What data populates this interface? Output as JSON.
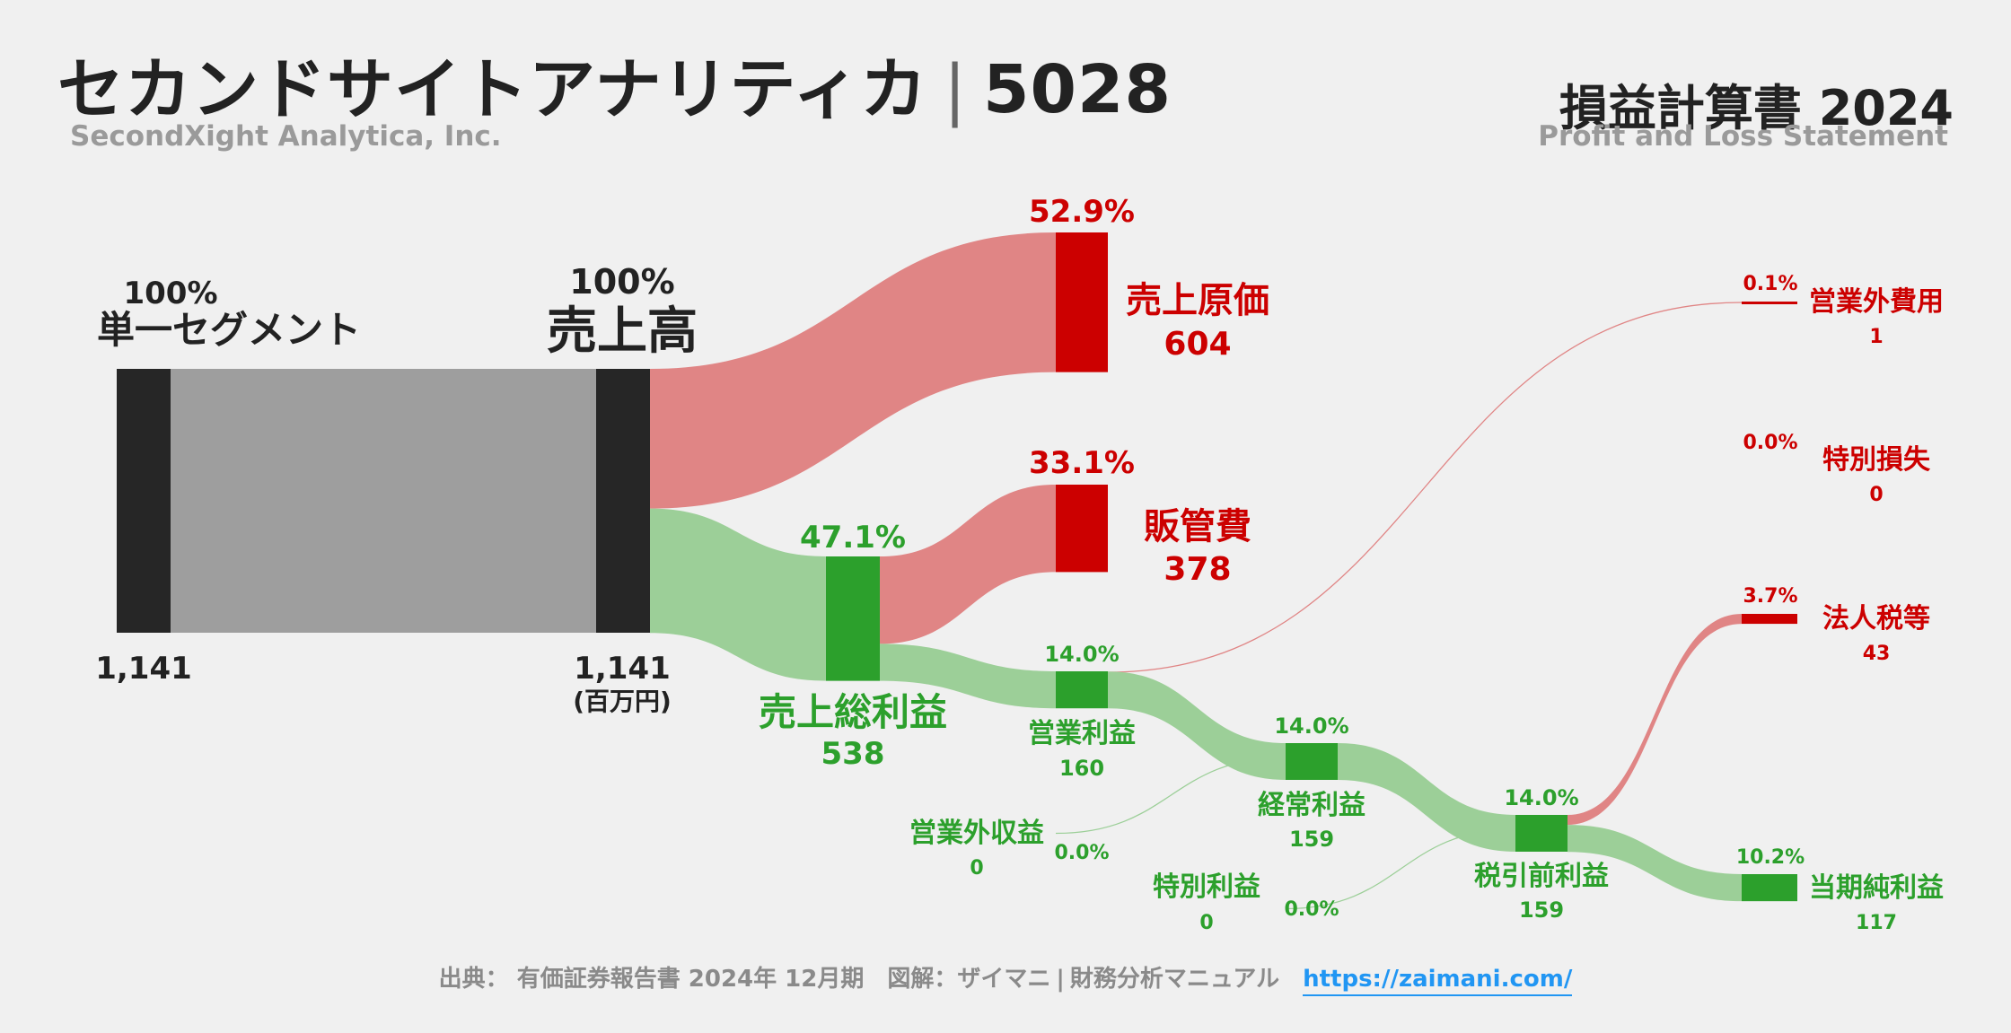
{
  "header": {
    "company_name": "セカンドサイトアナリティカ",
    "ticker": "5028",
    "company_name_en": "SecondXight Analytica, Inc.",
    "statement_title": "損益計算書 2024",
    "statement_title_en": "Profit and Loss Statement"
  },
  "footer": {
    "source": "出典： 有価証券報告書 2024年 12月期　図解：ザイマニ",
    "separator": "|",
    "publisher": "財務分析マニュアル",
    "url": "https://zaimani.com/"
  },
  "colors": {
    "revenue": "#262626",
    "segment_flow": "#9e9e9e",
    "cost": "#cc0000",
    "cost_flow": "#e08585",
    "profit": "#2ca02c",
    "profit_flow": "#9ccf98",
    "text_dark": "#222222"
  },
  "chart_data": {
    "type": "sankey",
    "unit": "(百万円)",
    "nodes": [
      {
        "id": "segment",
        "label": "単一セグメント",
        "value": 1141,
        "value_label": "1,141",
        "pct": "100%",
        "kind": "revenue"
      },
      {
        "id": "revenue",
        "label": "売上高",
        "value": 1141,
        "value_label": "1,141",
        "pct": "100%",
        "kind": "revenue"
      },
      {
        "id": "cogs",
        "label": "売上原価",
        "value": 604,
        "value_label": "604",
        "pct": "52.9%",
        "kind": "cost"
      },
      {
        "id": "gross_profit",
        "label": "売上総利益",
        "value": 538,
        "value_label": "538",
        "pct": "47.1%",
        "kind": "profit"
      },
      {
        "id": "sga",
        "label": "販管費",
        "value": 378,
        "value_label": "378",
        "pct": "33.1%",
        "kind": "cost"
      },
      {
        "id": "operating_profit",
        "label": "営業利益",
        "value": 160,
        "value_label": "160",
        "pct": "14.0%",
        "kind": "profit"
      },
      {
        "id": "non_op_expense",
        "label": "営業外費用",
        "value": 1,
        "value_label": "1",
        "pct": "0.1%",
        "kind": "cost"
      },
      {
        "id": "non_op_income",
        "label": "営業外収益",
        "value": 0,
        "value_label": "0",
        "pct": "0.0%",
        "kind": "profit"
      },
      {
        "id": "ordinary_profit",
        "label": "経常利益",
        "value": 159,
        "value_label": "159",
        "pct": "14.0%",
        "kind": "profit"
      },
      {
        "id": "extraordinary_gain",
        "label": "特別利益",
        "value": 0,
        "value_label": "0",
        "pct": "0.0%",
        "kind": "profit"
      },
      {
        "id": "extraordinary_loss",
        "label": "特別損失",
        "value": 0,
        "value_label": "0",
        "pct": "0.0%",
        "kind": "cost"
      },
      {
        "id": "pretax_profit",
        "label": "税引前利益",
        "value": 159,
        "value_label": "159",
        "pct": "14.0%",
        "kind": "profit"
      },
      {
        "id": "income_tax",
        "label": "法人税等",
        "value": 43,
        "value_label": "43",
        "pct": "3.7%",
        "kind": "cost"
      },
      {
        "id": "net_income",
        "label": "当期純利益",
        "value": 117,
        "value_label": "117",
        "pct": "10.2%",
        "kind": "profit"
      }
    ],
    "links": [
      {
        "from": "segment",
        "to": "revenue",
        "value": 1141
      },
      {
        "from": "revenue",
        "to": "cogs",
        "value": 604
      },
      {
        "from": "revenue",
        "to": "gross_profit",
        "value": 538
      },
      {
        "from": "gross_profit",
        "to": "sga",
        "value": 378
      },
      {
        "from": "gross_profit",
        "to": "operating_profit",
        "value": 160
      },
      {
        "from": "operating_profit",
        "to": "non_op_expense",
        "value": 1
      },
      {
        "from": "operating_profit",
        "to": "ordinary_profit",
        "value": 159
      },
      {
        "from": "non_op_income",
        "to": "ordinary_profit",
        "value": 0
      },
      {
        "from": "ordinary_profit",
        "to": "pretax_profit",
        "value": 159
      },
      {
        "from": "extraordinary_gain",
        "to": "pretax_profit",
        "value": 0
      },
      {
        "from": "pretax_profit",
        "to": "income_tax",
        "value": 43
      },
      {
        "from": "pretax_profit",
        "to": "net_income",
        "value": 117
      }
    ]
  }
}
